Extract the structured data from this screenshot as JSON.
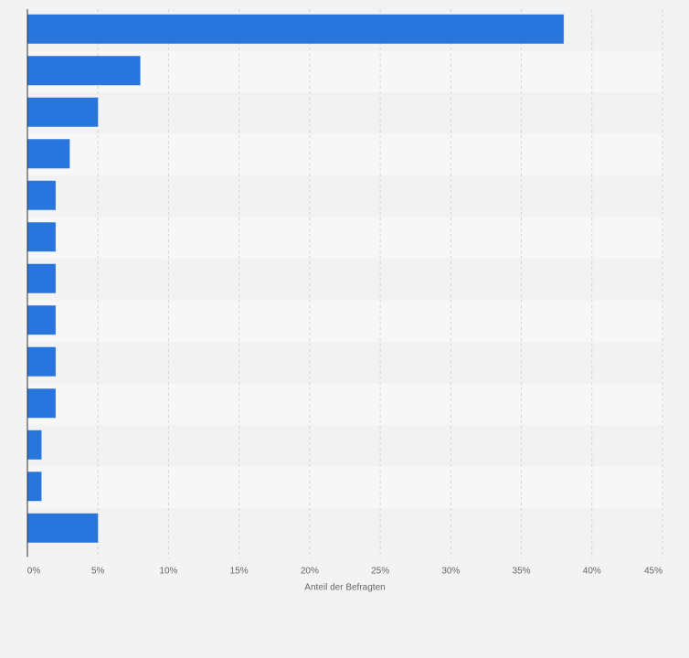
{
  "colors": {
    "background": "#f3f3f3",
    "band_light": "#f7f7f7",
    "band_dark": "#f2f2f2",
    "bar": "#2876dd",
    "grid": "#d4d4d4",
    "axis": "#333333"
  },
  "chart_data": {
    "type": "bar",
    "orientation": "horizontal",
    "title": "",
    "xlabel": "Anteil der Befragten",
    "ylabel": "",
    "categories": [
      "",
      "",
      "",
      "",
      "",
      "",
      "",
      "",
      "",
      "",
      "",
      "",
      ""
    ],
    "values": [
      38,
      8,
      5,
      3,
      2,
      2,
      2,
      2,
      2,
      2,
      1,
      1,
      5
    ],
    "xlim": [
      0,
      45
    ],
    "xticks": [
      "0%",
      "5%",
      "10%",
      "15%",
      "20%",
      "25%",
      "30%",
      "35%",
      "40%",
      "45%"
    ],
    "grid": true,
    "legend": "none"
  }
}
